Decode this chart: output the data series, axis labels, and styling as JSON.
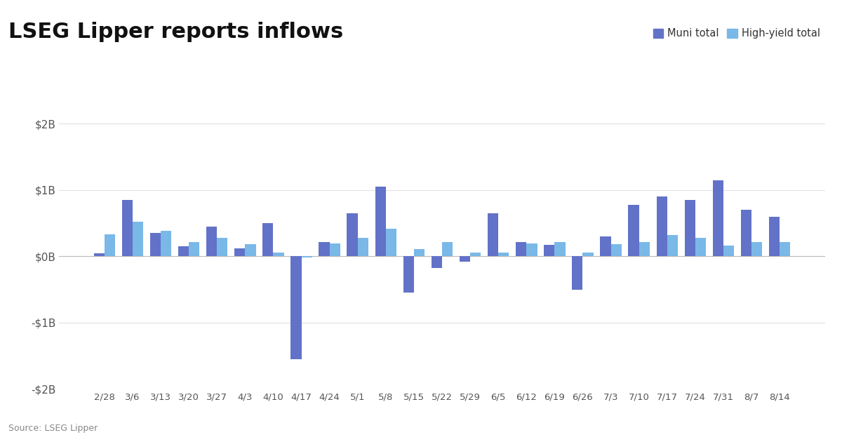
{
  "title": "LSEG Lipper reports inflows",
  "source": "Source: LSEG Lipper",
  "labels": [
    "2/28",
    "3/6",
    "3/13",
    "3/20",
    "3/27",
    "4/3",
    "4/10",
    "4/17",
    "4/24",
    "5/1",
    "5/8",
    "5/15",
    "5/22",
    "5/29",
    "6/5",
    "6/12",
    "6/19",
    "6/26",
    "7/3",
    "7/10",
    "7/17",
    "7/24",
    "7/31",
    "8/7",
    "8/14"
  ],
  "muni_total": [
    0.05,
    0.85,
    0.35,
    0.15,
    0.45,
    0.12,
    0.5,
    -1.55,
    0.22,
    0.65,
    1.05,
    -0.55,
    -0.18,
    -0.08,
    0.65,
    0.22,
    0.17,
    -0.5,
    0.3,
    0.78,
    0.9,
    0.85,
    1.15,
    0.7,
    0.6
  ],
  "hy_total": [
    0.33,
    0.52,
    0.38,
    0.22,
    0.28,
    0.18,
    0.06,
    -0.02,
    0.2,
    0.28,
    0.42,
    0.11,
    0.22,
    0.06,
    0.06,
    0.2,
    0.22,
    0.06,
    0.18,
    0.22,
    0.32,
    0.28,
    0.16,
    0.22,
    0.22
  ],
  "muni_color": "#6272c8",
  "hy_color": "#7ab8e8",
  "ylim": [
    -2.0,
    2.0
  ],
  "yticks": [
    -2.0,
    -1.0,
    0.0,
    1.0,
    2.0
  ],
  "ytick_labels": [
    "-$2B",
    "-$1B",
    "$0B",
    "$1B",
    "$2B"
  ],
  "bg_color": "#ffffff",
  "grid_color": "#e0e0e8",
  "title_fontsize": 22,
  "legend_labels": [
    "Muni total",
    "High-yield total"
  ],
  "bar_width": 0.38
}
